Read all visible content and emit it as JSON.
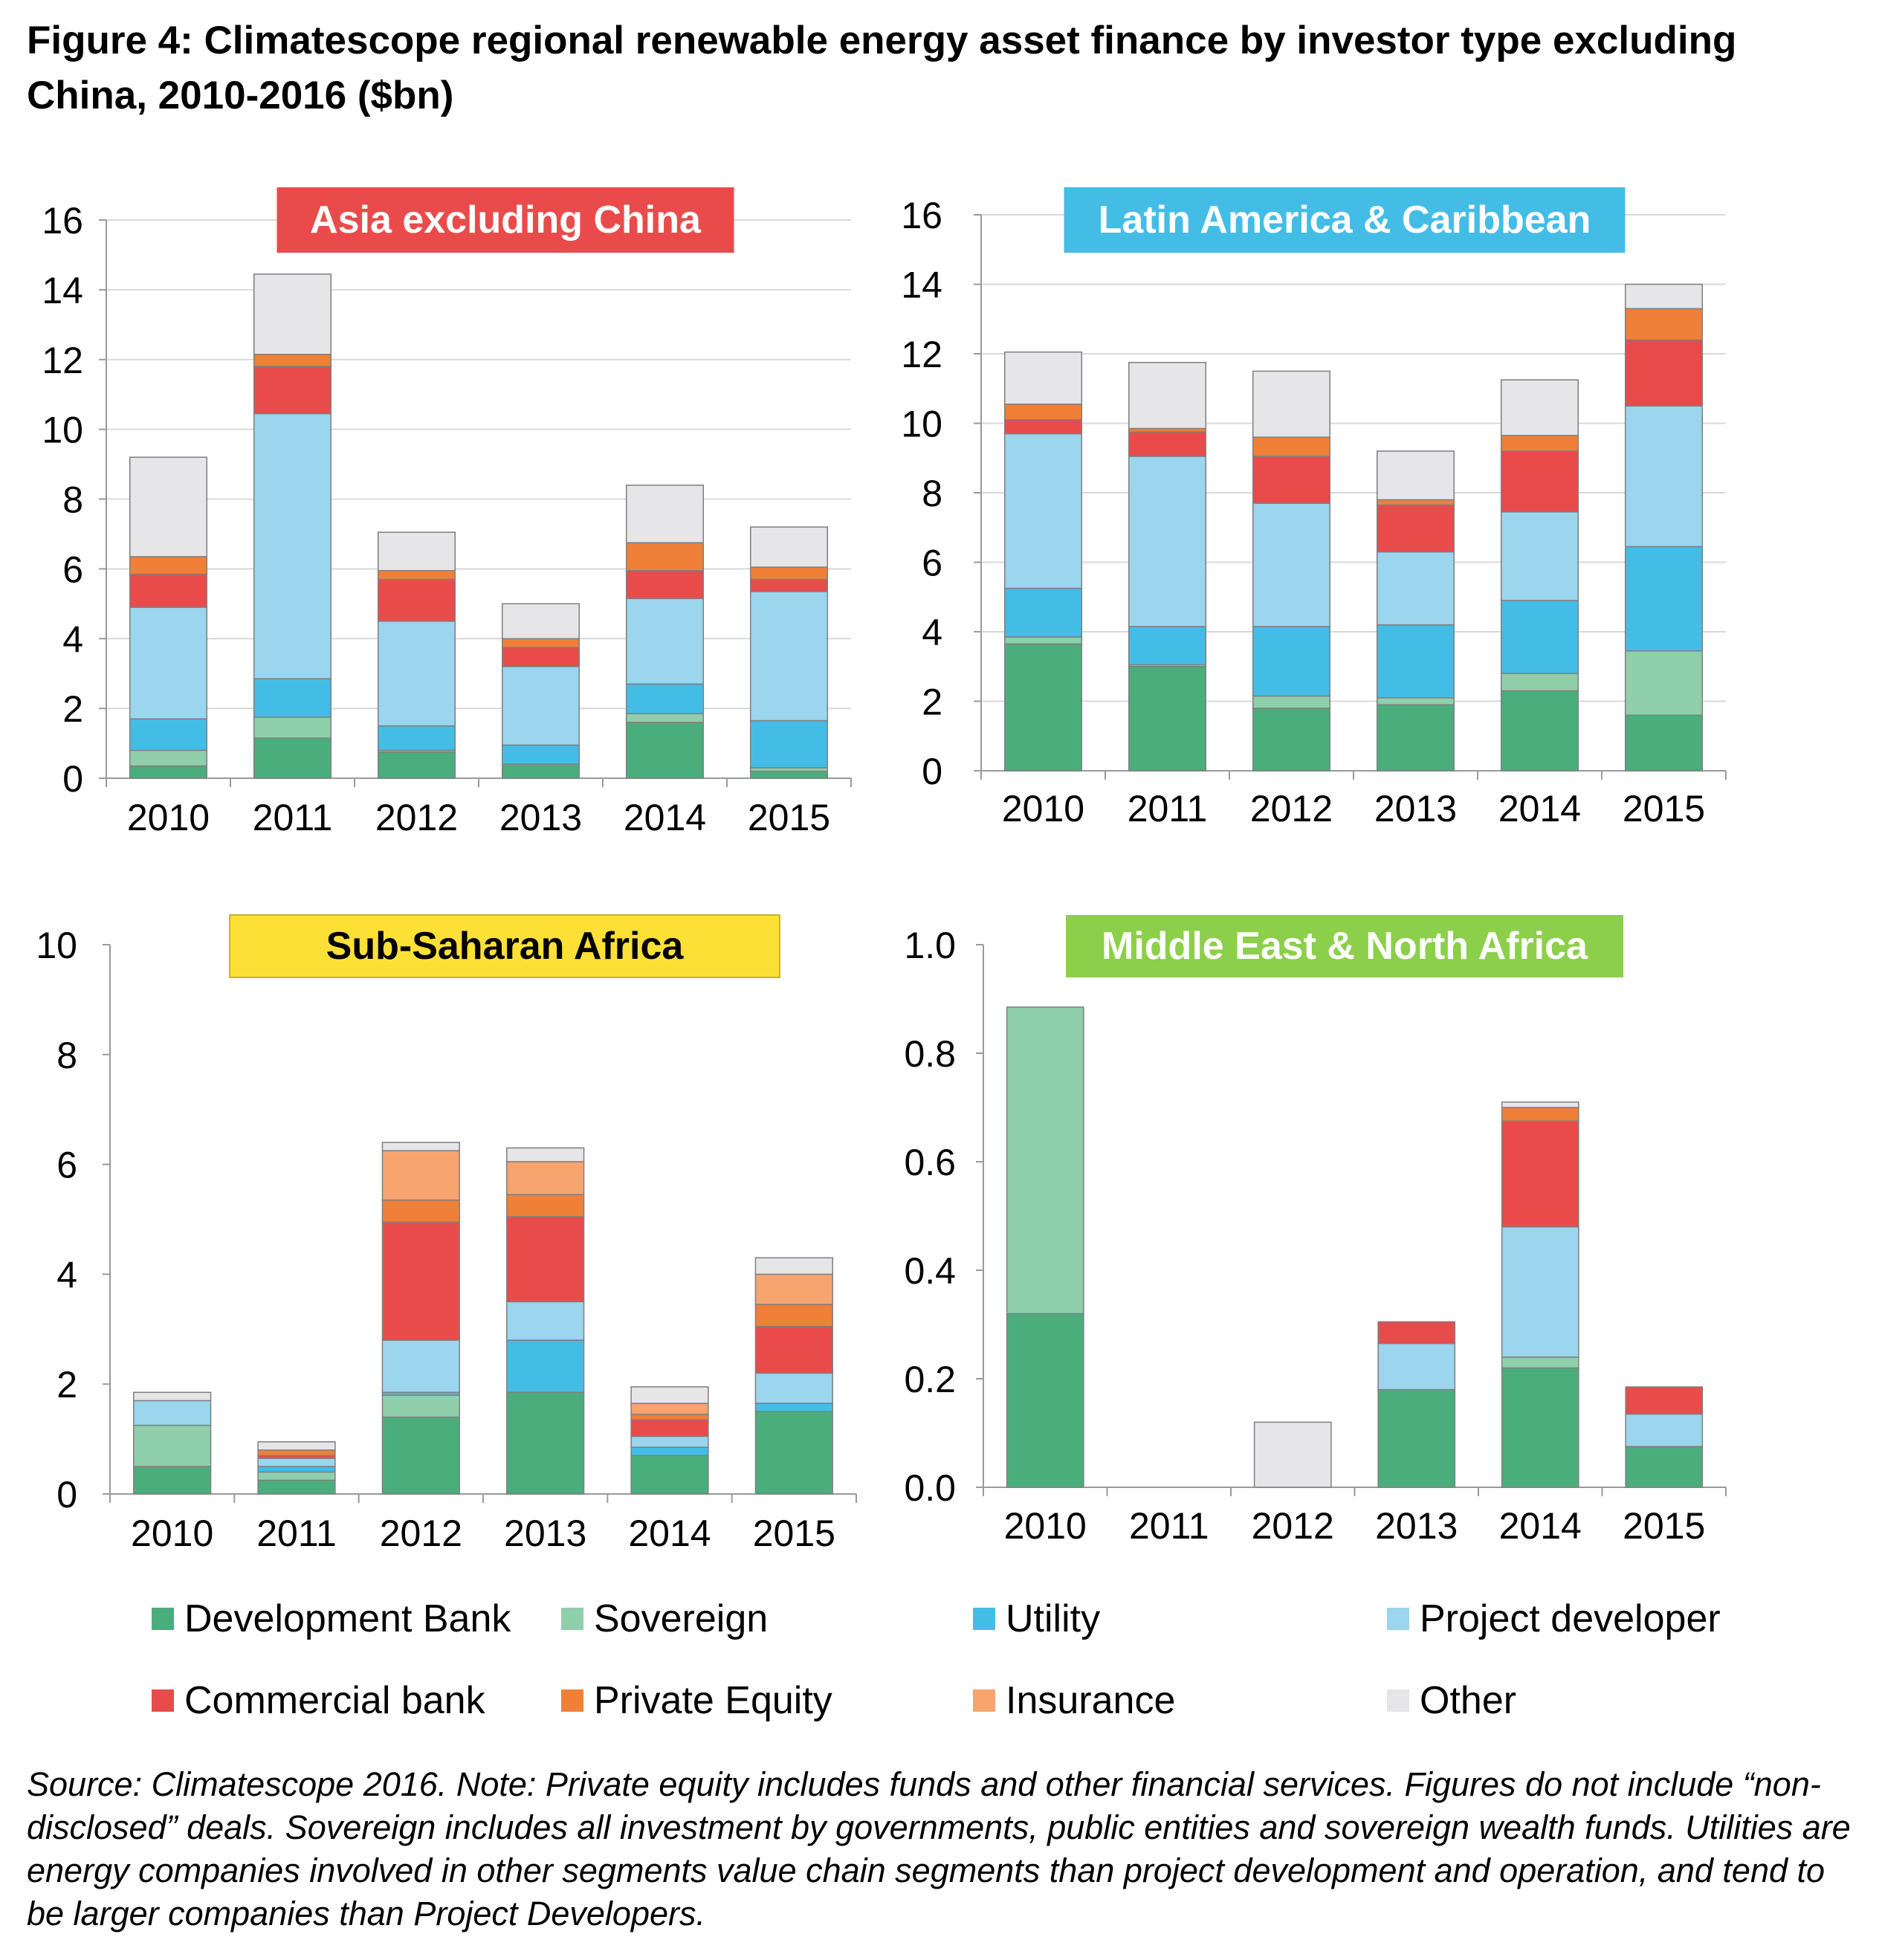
{
  "figure": {
    "title": "Figure 4: Climatescope regional renewable energy asset finance by investor type excluding China, 2010-2016 ($bn)",
    "note": "Source: Climatescope 2016. Note: Private equity includes funds and other financial services. Figures do not include “non-disclosed” deals. Sovereign includes all investment by governments, public entities and sovereign wealth funds. Utilities are energy companies involved in other segments value chain segments than project development and operation, and tend to be larger companies than Project Developers."
  },
  "legend": [
    {
      "name": "Development Bank",
      "color": "#4aae7c"
    },
    {
      "name": "Sovereign",
      "color": "#8fcfac"
    },
    {
      "name": "Utility",
      "color": "#44bde6"
    },
    {
      "name": "Project developer",
      "color": "#9bd5ee"
    },
    {
      "name": "Commercial bank",
      "color": "#e94b4b"
    },
    {
      "name": "Private Equity",
      "color": "#f08037"
    },
    {
      "name": "Insurance",
      "color": "#f7a46f"
    },
    {
      "name": "Other",
      "color": "#e6e6e8"
    }
  ],
  "chart_data": [
    {
      "type": "bar",
      "stacked": true,
      "title": "Asia excluding China",
      "title_bg": "#e94b4b",
      "title_color": "#ffffff",
      "categories": [
        "2010",
        "2011",
        "2012",
        "2013",
        "2014",
        "2015"
      ],
      "ylim": [
        0,
        16
      ],
      "yticks": [
        "0",
        "2",
        "4",
        "6",
        "8",
        "10",
        "12",
        "14",
        "16"
      ],
      "ytick_values": [
        0,
        2,
        4,
        6,
        8,
        10,
        12,
        14,
        16
      ],
      "grid": true,
      "series": [
        {
          "name": "Development Bank",
          "values": [
            0.35,
            1.15,
            0.75,
            0.4,
            1.6,
            0.2
          ]
        },
        {
          "name": "Sovereign",
          "values": [
            0.45,
            0.6,
            0.05,
            0.0,
            0.25,
            0.1
          ]
        },
        {
          "name": "Utility",
          "values": [
            0.9,
            1.1,
            0.7,
            0.55,
            0.85,
            1.35
          ]
        },
        {
          "name": "Project developer",
          "values": [
            3.2,
            7.6,
            3.0,
            2.25,
            2.45,
            3.7
          ]
        },
        {
          "name": "Commercial bank",
          "values": [
            0.95,
            1.35,
            1.2,
            0.55,
            0.8,
            0.35
          ]
        },
        {
          "name": "Private Equity",
          "values": [
            0.5,
            0.35,
            0.25,
            0.25,
            0.8,
            0.35
          ]
        },
        {
          "name": "Insurance",
          "values": [
            0,
            0,
            0,
            0,
            0,
            0
          ]
        },
        {
          "name": "Other",
          "values": [
            2.85,
            2.3,
            1.1,
            1.0,
            1.65,
            1.15
          ]
        }
      ]
    },
    {
      "type": "bar",
      "stacked": true,
      "title": "Latin America & Caribbean",
      "title_bg": "#44bde6",
      "title_color": "#ffffff",
      "categories": [
        "2010",
        "2011",
        "2012",
        "2013",
        "2014",
        "2015"
      ],
      "ylim": [
        0,
        16
      ],
      "yticks": [
        "0",
        "2",
        "4",
        "6",
        "8",
        "10",
        "12",
        "14",
        "16"
      ],
      "ytick_values": [
        0,
        2,
        4,
        6,
        8,
        10,
        12,
        14,
        16
      ],
      "grid": true,
      "series": [
        {
          "name": "Development Bank",
          "values": [
            3.65,
            3.0,
            1.8,
            1.9,
            2.3,
            1.6
          ]
        },
        {
          "name": "Sovereign",
          "values": [
            0.2,
            0.05,
            0.35,
            0.2,
            0.5,
            1.85
          ]
        },
        {
          "name": "Utility",
          "values": [
            1.4,
            1.1,
            2.0,
            2.1,
            2.1,
            3.0
          ]
        },
        {
          "name": "Project developer",
          "values": [
            4.45,
            4.9,
            3.55,
            2.1,
            2.55,
            4.05
          ]
        },
        {
          "name": "Commercial bank",
          "values": [
            0.4,
            0.7,
            1.35,
            1.35,
            1.75,
            1.9
          ]
        },
        {
          "name": "Private Equity",
          "values": [
            0.45,
            0.1,
            0.55,
            0.15,
            0.45,
            0.9
          ]
        },
        {
          "name": "Insurance",
          "values": [
            0,
            0,
            0,
            0,
            0,
            0
          ]
        },
        {
          "name": "Other",
          "values": [
            1.5,
            1.9,
            1.9,
            1.4,
            1.6,
            0.7
          ]
        }
      ]
    },
    {
      "type": "bar",
      "stacked": true,
      "title": "Sub-Saharan Africa",
      "title_bg": "#fde036",
      "title_color": "#000000",
      "categories": [
        "2010",
        "2011",
        "2012",
        "2013",
        "2014",
        "2015"
      ],
      "ylim": [
        0,
        10
      ],
      "yticks": [
        "0",
        "2",
        "4",
        "6",
        "8",
        "10"
      ],
      "ytick_values": [
        0,
        2,
        4,
        6,
        8,
        10
      ],
      "grid": false,
      "series": [
        {
          "name": "Development Bank",
          "values": [
            0.5,
            0.25,
            1.4,
            1.85,
            0.7,
            1.5
          ]
        },
        {
          "name": "Sovereign",
          "values": [
            0.75,
            0.15,
            0.4,
            0.0,
            0.0,
            0.0
          ]
        },
        {
          "name": "Utility",
          "values": [
            0.0,
            0.1,
            0.05,
            0.95,
            0.15,
            0.15
          ]
        },
        {
          "name": "Project developer",
          "values": [
            0.45,
            0.15,
            0.95,
            0.7,
            0.2,
            0.55
          ]
        },
        {
          "name": "Commercial bank",
          "values": [
            0.0,
            0.05,
            2.15,
            1.55,
            0.3,
            0.85
          ]
        },
        {
          "name": "Private Equity",
          "values": [
            0.0,
            0.1,
            0.4,
            0.4,
            0.1,
            0.4
          ]
        },
        {
          "name": "Insurance",
          "values": [
            0.0,
            0.0,
            0.9,
            0.6,
            0.2,
            0.55
          ]
        },
        {
          "name": "Other",
          "values": [
            0.15,
            0.15,
            0.15,
            0.25,
            0.3,
            0.3
          ]
        }
      ]
    },
    {
      "type": "bar",
      "stacked": true,
      "title": "Middle East & North Africa",
      "title_bg": "#8ccf4a",
      "title_color": "#ffffff",
      "categories": [
        "2010",
        "2011",
        "2012",
        "2013",
        "2014",
        "2015"
      ],
      "ylim": [
        0,
        1.0
      ],
      "yticks": [
        "0.0",
        "0.2",
        "0.4",
        "0.6",
        "0.8",
        "1.0"
      ],
      "ytick_values": [
        0,
        0.2,
        0.4,
        0.6,
        0.8,
        1.0
      ],
      "grid": false,
      "series": [
        {
          "name": "Development Bank",
          "values": [
            0.32,
            0.0,
            0.0,
            0.18,
            0.22,
            0.075
          ]
        },
        {
          "name": "Sovereign",
          "values": [
            0.565,
            0.0,
            0.0,
            0.0,
            0.02,
            0.0
          ]
        },
        {
          "name": "Utility",
          "values": [
            0,
            0,
            0,
            0,
            0,
            0
          ]
        },
        {
          "name": "Project developer",
          "values": [
            0.0,
            0.0,
            0.0,
            0.085,
            0.24,
            0.06
          ]
        },
        {
          "name": "Commercial bank",
          "values": [
            0.0,
            0.0,
            0.0,
            0.04,
            0.195,
            0.05
          ]
        },
        {
          "name": "Private Equity",
          "values": [
            0.0,
            0.0,
            0.0,
            0.0,
            0.025,
            0.0
          ]
        },
        {
          "name": "Insurance",
          "values": [
            0,
            0,
            0,
            0,
            0,
            0
          ]
        },
        {
          "name": "Other",
          "values": [
            0.0,
            0.0,
            0.12,
            0.0,
            0.01,
            0.0
          ]
        }
      ]
    }
  ]
}
